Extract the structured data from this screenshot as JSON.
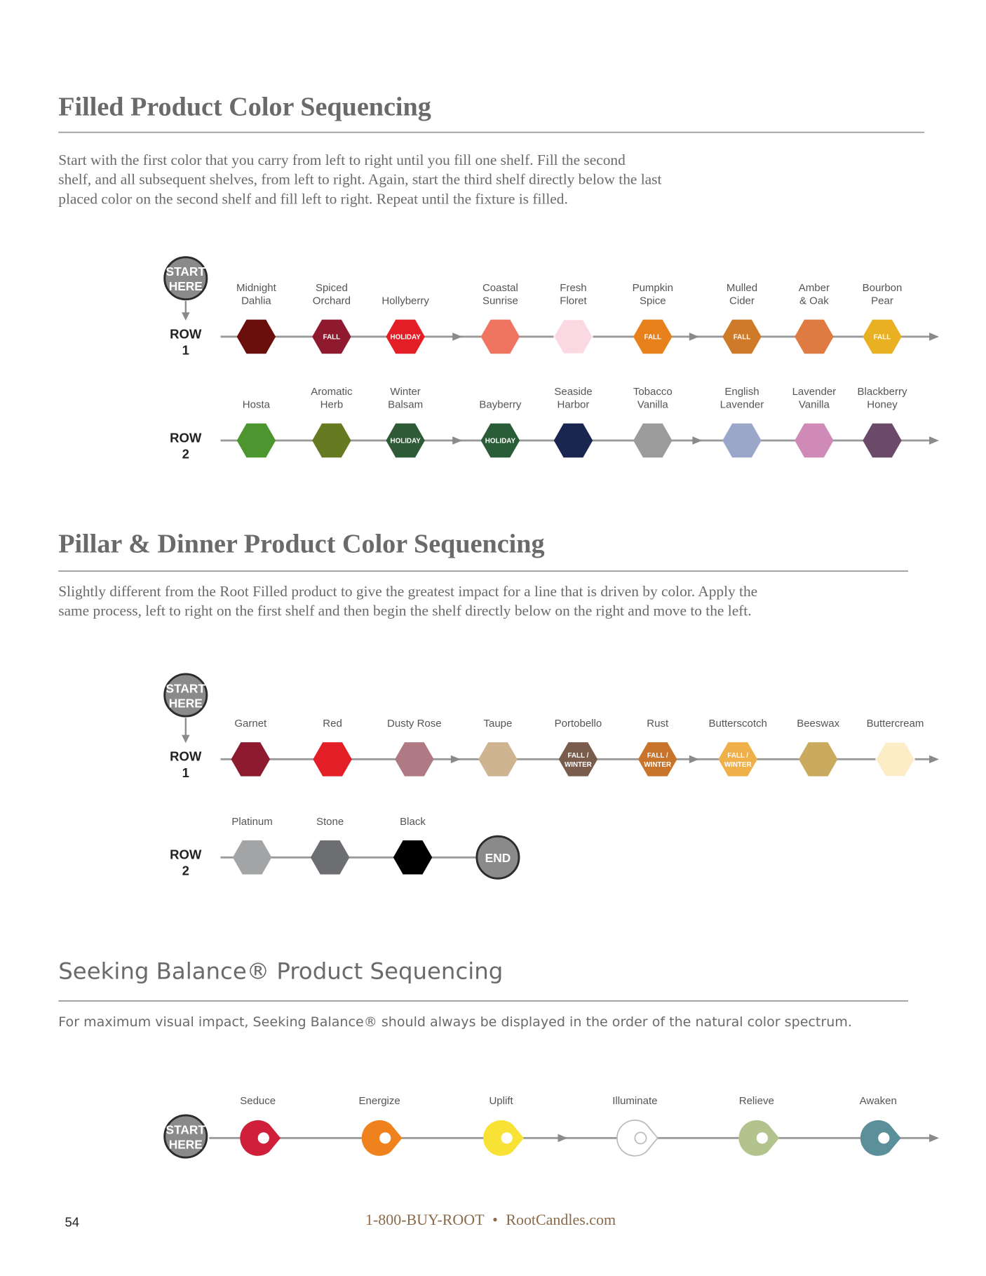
{
  "sections": [
    {
      "title": "Filled Product Color Sequencing",
      "description": [
        "Start with the first color that you carry from left to right until you fill one shelf. Fill the second",
        "shelf, and all subsequent shelves, from left to right. Again, start the third shelf directly below the last",
        "placed color on the second shelf and fill left to right. Repeat until the fixture is filled."
      ],
      "start": [
        "START",
        "HERE"
      ],
      "rows": [
        {
          "label": [
            "ROW",
            "1"
          ],
          "items": [
            {
              "name": [
                "Midnight",
                "Dahlia"
              ],
              "color": "#6b0f0d"
            },
            {
              "name": [
                "Spiced",
                "Orchard"
              ],
              "color": "#8f1a2e",
              "tag": [
                "FALL"
              ]
            },
            {
              "name": [
                "Hollyberry"
              ],
              "color": "#e41e26",
              "tag": [
                "HOLIDAY"
              ]
            },
            {
              "name": [
                "Coastal",
                "Sunrise"
              ],
              "color": "#f07560"
            },
            {
              "name": [
                "Fresh",
                "Floret"
              ],
              "color": "#fbd9e3"
            },
            {
              "name": [
                "Pumpkin",
                "Spice"
              ],
              "color": "#e8801c",
              "tag": [
                "FALL"
              ]
            },
            {
              "name": [
                "Mulled",
                "Cider"
              ],
              "color": "#cf7a28",
              "tag": [
                "FALL"
              ]
            },
            {
              "name": [
                "Amber",
                "& Oak"
              ],
              "color": "#df7a40"
            },
            {
              "name": [
                "Bourbon",
                "Pear"
              ],
              "color": "#e9b022",
              "tag": [
                "FALL"
              ]
            }
          ]
        },
        {
          "label": [
            "ROW",
            "2"
          ],
          "items": [
            {
              "name": [
                "Hosta"
              ],
              "color": "#4d962f"
            },
            {
              "name": [
                "Aromatic",
                "Herb"
              ],
              "color": "#667a22"
            },
            {
              "name": [
                "Winter",
                "Balsam"
              ],
              "color": "#2e5a35",
              "tag": [
                "HOLIDAY"
              ]
            },
            {
              "name": [
                "Bayberry"
              ],
              "color": "#2a5c38",
              "tag": [
                "HOLIDAY"
              ]
            },
            {
              "name": [
                "Seaside",
                "Harbor"
              ],
              "color": "#182650"
            },
            {
              "name": [
                "Tobacco",
                "Vanilla"
              ],
              "color": "#9b9b9b"
            },
            {
              "name": [
                "English",
                "Lavender"
              ],
              "color": "#9aa7c8"
            },
            {
              "name": [
                "Lavender",
                "Vanilla"
              ],
              "color": "#d08ab8"
            },
            {
              "name": [
                "Blackberry",
                "Honey"
              ],
              "color": "#6a4a68"
            }
          ]
        }
      ]
    },
    {
      "title": "Pillar & Dinner Product Color Sequencing",
      "description": [
        "Slightly different from the Root Filled product to give the greatest impact for a  line that is driven by color. Apply the",
        "same process, left to right on the first shelf and then begin the shelf directly below on the right and move to the left."
      ],
      "start": [
        "START",
        "HERE"
      ],
      "rows": [
        {
          "label": [
            "ROW",
            "1"
          ],
          "items": [
            {
              "name": [
                "Garnet"
              ],
              "color": "#8e1a2f"
            },
            {
              "name": [
                "Red"
              ],
              "color": "#e41e26"
            },
            {
              "name": [
                "Dusty Rose"
              ],
              "color": "#b07a84"
            },
            {
              "name": [
                "Taupe"
              ],
              "color": "#cfb491"
            },
            {
              "name": [
                "Portobello"
              ],
              "color": "#7a5c4c",
              "tag": [
                "FALL /",
                "WINTER"
              ]
            },
            {
              "name": [
                "Rust"
              ],
              "color": "#c8742a",
              "tag": [
                "FALL /",
                "WINTER"
              ]
            },
            {
              "name": [
                "Butterscotch"
              ],
              "color": "#efb04a",
              "tag": [
                "FALL /",
                "WINTER"
              ]
            },
            {
              "name": [
                "Beeswax"
              ],
              "color": "#c9aa5e"
            },
            {
              "name": [
                "Buttercream"
              ],
              "color": "#fdedc6"
            }
          ]
        },
        {
          "label": [
            "ROW",
            "2"
          ],
          "items": [
            {
              "name": [
                "Platinum"
              ],
              "color": "#a3a4a6"
            },
            {
              "name": [
                "Stone"
              ],
              "color": "#6d6e71"
            },
            {
              "name": [
                "Black"
              ],
              "color": "#000000"
            }
          ],
          "end": "END"
        }
      ]
    },
    {
      "title": "Seeking Balance® Product Sequencing",
      "description": [
        "For maximum visual impact, Seeking Balance® should always be displayed in the order of the natural color spectrum."
      ],
      "start": [
        "START",
        "HERE"
      ],
      "shape": "drop",
      "rows": [
        {
          "items": [
            {
              "name": [
                "Seduce"
              ],
              "color": "#d01f3a"
            },
            {
              "name": [
                "Energize"
              ],
              "color": "#f0821e"
            },
            {
              "name": [
                "Uplift"
              ],
              "color": "#f7e235"
            },
            {
              "name": [
                "Illuminate"
              ],
              "color": "#ffffff"
            },
            {
              "name": [
                "Relieve"
              ],
              "color": "#b3c38e"
            },
            {
              "name": [
                "Awaken"
              ],
              "color": "#5b8f99"
            }
          ]
        }
      ]
    }
  ],
  "footer": {
    "page": "54",
    "phone": "1-800-BUY-ROOT",
    "separator": "•",
    "website": "RootCandles.com"
  }
}
